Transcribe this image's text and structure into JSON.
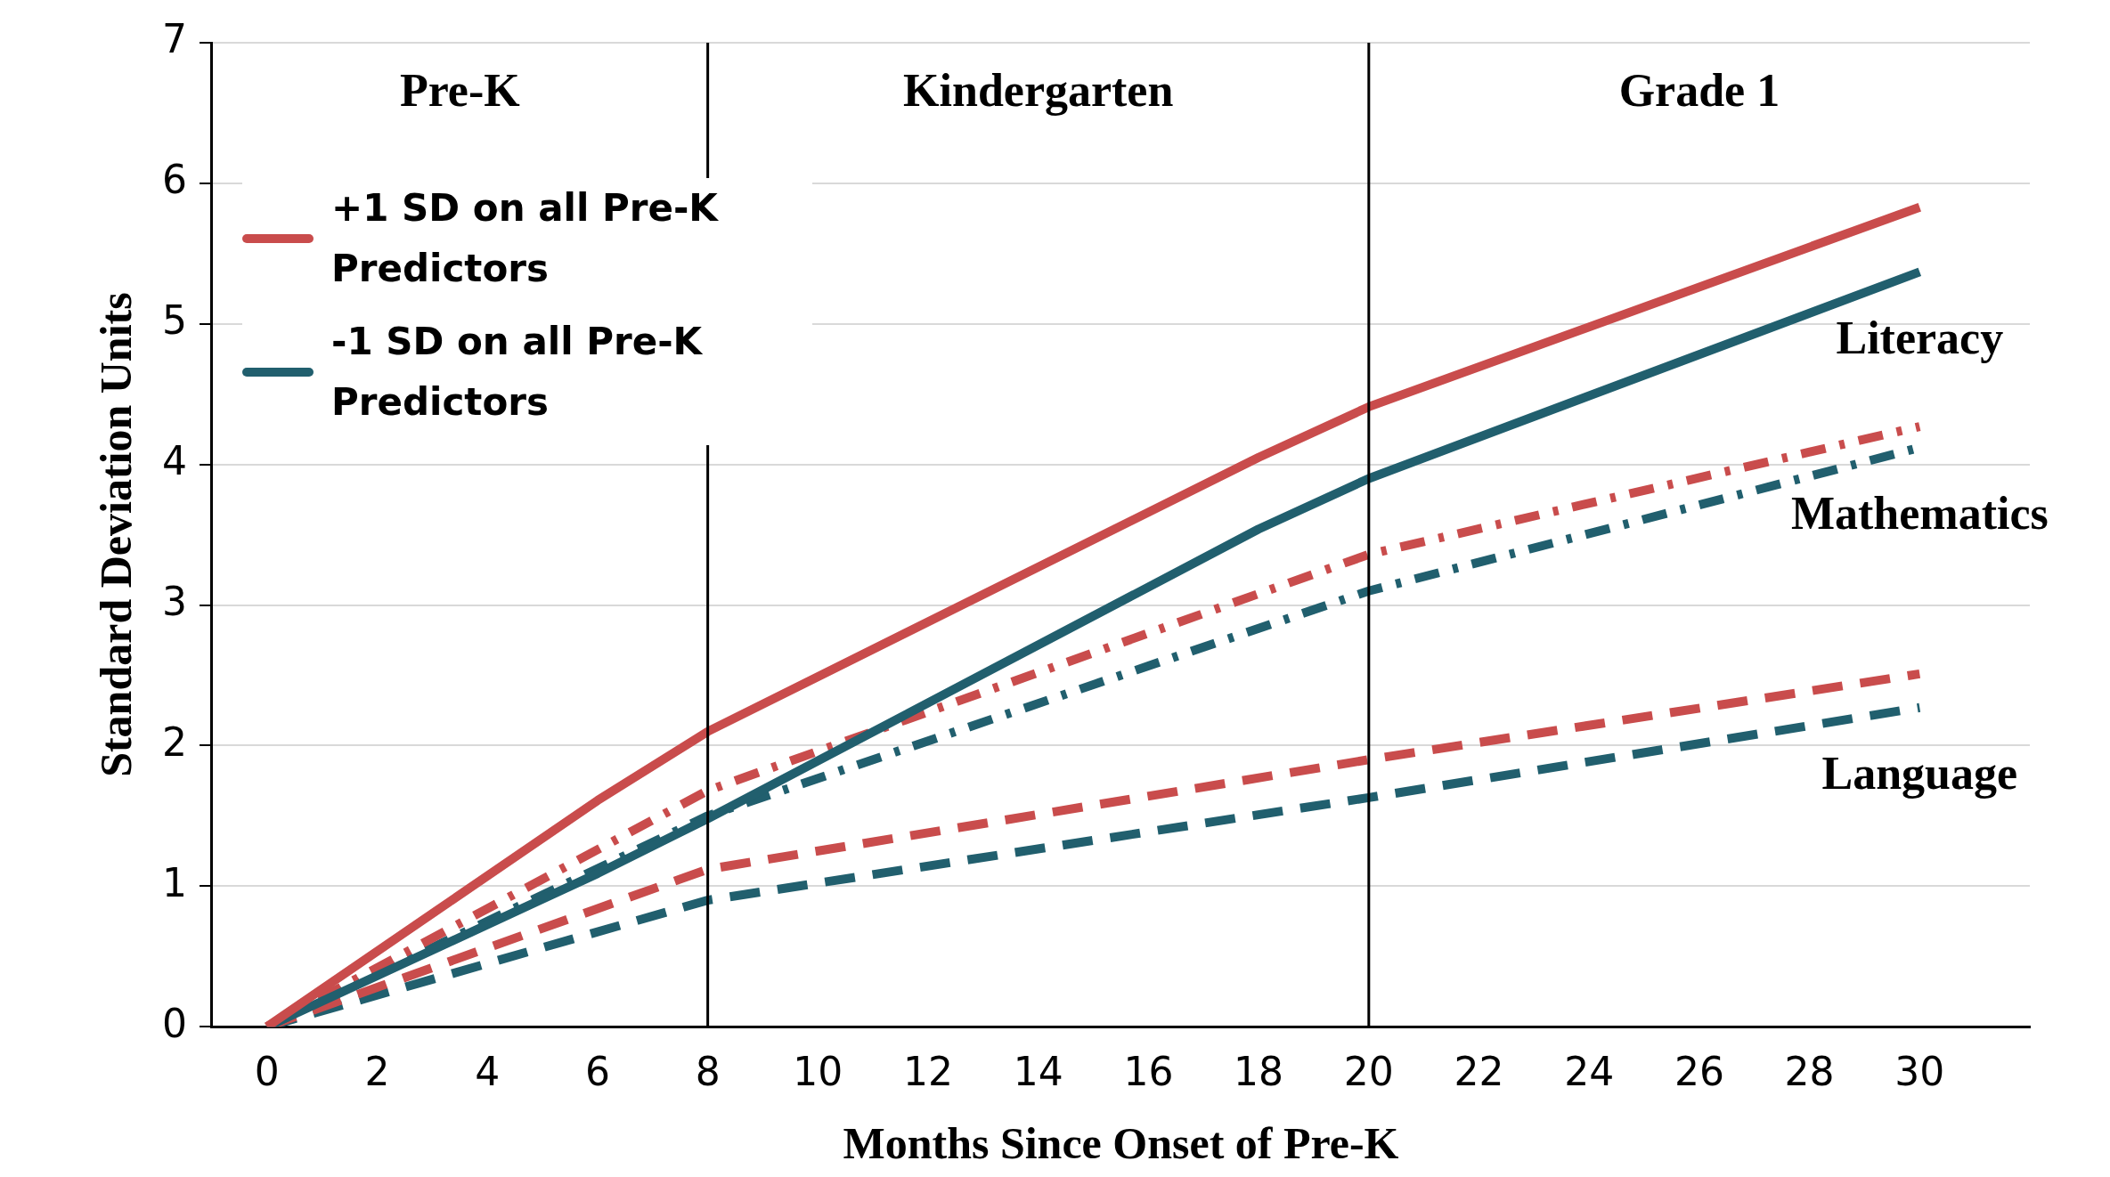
{
  "chart_data": {
    "type": "line",
    "xlabel": "Months Since Onset of Pre-K",
    "ylabel": "Standard Deviation Units",
    "xlim": [
      -1,
      32
    ],
    "xticks": [
      0,
      2,
      4,
      6,
      8,
      10,
      12,
      14,
      16,
      18,
      20,
      22,
      24,
      26,
      28,
      30
    ],
    "ylim": [
      0,
      7
    ],
    "yticks": [
      0,
      1,
      2,
      3,
      4,
      5,
      6,
      7
    ],
    "grid": "y",
    "legend": "top left",
    "marker": "none",
    "series": [
      {
        "name": "+1 SD on all Pre-K Predictors",
        "color": "#c94c4c",
        "line_style": "solid",
        "x": [
          0,
          6,
          8,
          18,
          20,
          30
        ],
        "values": [
          0,
          1.61,
          2.1,
          4.05,
          4.41,
          5.83
        ]
      },
      {
        "name": "-1 SD on all Pre-K Predictors",
        "color": "#215f6e",
        "line_style": "solid",
        "x": [
          0,
          6,
          8,
          18,
          20,
          30
        ],
        "values": [
          0,
          1.09,
          1.48,
          3.54,
          3.9,
          5.37
        ]
      },
      {
        "color": "#c94c4c",
        "line_style": "dashdot",
        "x": [
          0,
          8,
          20,
          30
        ],
        "values": [
          0,
          1.68,
          3.36,
          4.27
        ]
      },
      {
        "color": "#215f6e",
        "line_style": "dashdot",
        "x": [
          0,
          8,
          20,
          30
        ],
        "values": [
          0,
          1.5,
          3.1,
          4.12
        ]
      },
      {
        "color": "#c94c4c",
        "line_style": "dashed",
        "x": [
          0,
          8,
          20,
          30
        ],
        "values": [
          0,
          1.12,
          1.9,
          2.51
        ]
      },
      {
        "color": "#215f6e",
        "line_style": "dashed",
        "x": [
          0,
          8,
          20,
          30
        ],
        "values": [
          0,
          0.9,
          1.63,
          2.27
        ]
      }
    ],
    "ref_lines": [
      {
        "axis": "x",
        "value": 8,
        "color": "#000000"
      },
      {
        "axis": "x",
        "value": 20,
        "color": "#000000"
      }
    ],
    "annotations": [
      "Pre-K",
      "Kindergarten",
      "Grade 1",
      "Literacy",
      "Mathematics",
      "Language"
    ]
  }
}
